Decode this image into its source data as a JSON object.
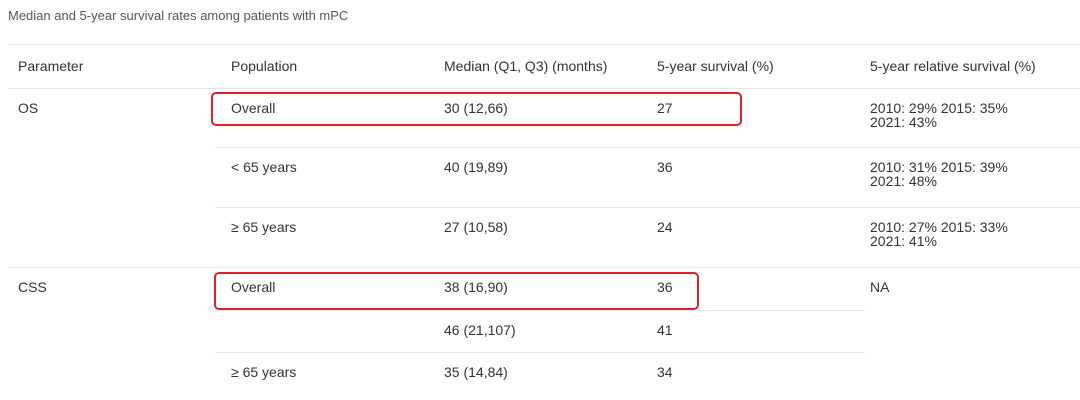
{
  "title": "Median and 5-year survival rates among patients with mPC",
  "table": {
    "header": [
      "Parameter",
      "Population",
      "Median (Q1, Q3) (months)",
      "5-year survival (%)",
      "5-year relative survival (%)"
    ],
    "groups": [
      {
        "parameter": "OS",
        "rows": [
          {
            "population": "Overall",
            "median": "30 (12,66)",
            "survival": 27,
            "relative": [
              "2010: 29% 2015: 35%",
              "2021: 43%"
            ]
          },
          {
            "population": "< 65 years",
            "median": "40 (19,89)",
            "survival": 36,
            "relative": [
              "2010: 31% 2015: 39%",
              "2021: 48%"
            ]
          },
          {
            "population": "≥ 65 years",
            "median": "27 (10,58)",
            "survival": 24,
            "relative": [
              "2010: 27% 2015: 33%",
              "2021: 41%"
            ]
          }
        ]
      },
      {
        "parameter": "CSS",
        "relative": "NA",
        "rows": [
          {
            "population": "Overall",
            "median": "38 (16,90)",
            "survival": 36
          },
          {
            "median": "46 (21,107)",
            "survival": 41
          },
          {
            "population": "≥ 65 years",
            "median": "35 (14,84)",
            "survival": 34
          }
        ]
      }
    ]
  }
}
